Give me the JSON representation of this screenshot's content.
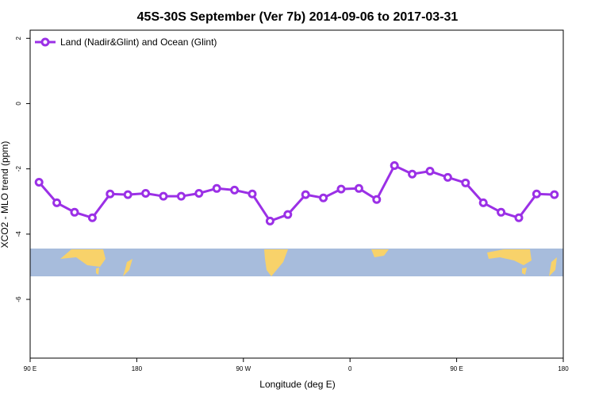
{
  "chart_data": {
    "type": "line",
    "title": "45S-30S September (Ver 7b)   2014-09-06 to 2017-03-31",
    "xlabel": "Longitude (deg E)",
    "ylabel": "XCO2 - MLO trend (ppm)",
    "x": [
      97.5,
      112.5,
      127.5,
      142.5,
      157.5,
      172.5,
      187.5,
      202.5,
      217.5,
      232.5,
      247.5,
      262.5,
      277.5,
      292.5,
      307.5,
      322.5,
      337.5,
      352.5,
      367.5,
      382.5,
      397.5,
      412.5,
      427.5,
      442.5,
      457.5,
      472.5,
      487.5,
      502.5,
      517.5,
      532.5
    ],
    "series": [
      {
        "name": "Land (Nadir&Glint) and Ocean (Glint)",
        "color": "#9b30e6",
        "values": [
          -2.41,
          -3.04,
          -3.33,
          -3.5,
          -2.77,
          -2.79,
          -2.75,
          -2.84,
          -2.84,
          -2.75,
          -2.6,
          -2.65,
          -2.77,
          -3.6,
          -3.4,
          -2.79,
          -2.89,
          -2.62,
          -2.6,
          -2.94,
          -1.9,
          -2.16,
          -2.07,
          -2.26,
          -2.43,
          -3.04,
          -3.33,
          -3.5,
          -2.77,
          -2.79
        ]
      }
    ],
    "xlim": [
      90,
      540
    ],
    "xticks": [
      {
        "value": 90,
        "label": "90 E"
      },
      {
        "value": 180,
        "label": "180"
      },
      {
        "value": 270,
        "label": "90 W"
      },
      {
        "value": 360,
        "label": "0"
      },
      {
        "value": 450,
        "label": "90 E"
      },
      {
        "value": 540,
        "label": "180"
      }
    ],
    "ylim": [
      -7.8,
      2.25
    ],
    "yticks": [
      2,
      0,
      -2,
      -4,
      -6
    ],
    "legend": "top-left"
  }
}
